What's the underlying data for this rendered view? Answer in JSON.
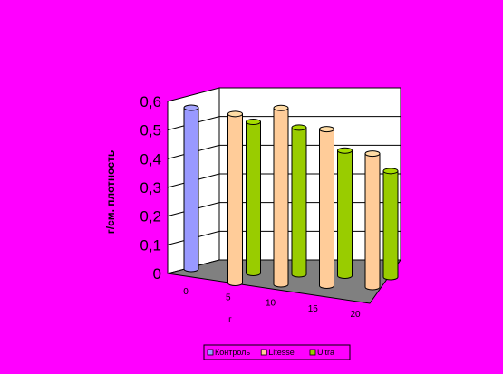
{
  "chart_data": {
    "type": "bar",
    "style": "3d-cylinder",
    "categories": [
      "0",
      "5",
      "10",
      "15",
      "20"
    ],
    "series": [
      {
        "name": "Контроль",
        "color": "#9999FF",
        "values": [
          0.59,
          null,
          null,
          null,
          null
        ]
      },
      {
        "name": "Litesse",
        "color": "#FFCC99",
        "values": [
          null,
          0.57,
          0.59,
          0.52,
          0.44
        ]
      },
      {
        "name": "Ultra",
        "color": "#99CC00",
        "values": [
          null,
          0.54,
          0.52,
          0.44,
          0.37
        ]
      }
    ],
    "xlabel": "г",
    "ylabel": "г/см. плотность",
    "ylim": [
      0,
      0.6
    ],
    "yticks": [
      "0",
      "0,1",
      "0,2",
      "0,3",
      "0,4",
      "0,5",
      "0,6"
    ],
    "grid": true,
    "legend_position": "bottom"
  },
  "colors": {
    "background": "#FF00FF",
    "floor": "#808080",
    "wall": "#FFFFFF"
  }
}
